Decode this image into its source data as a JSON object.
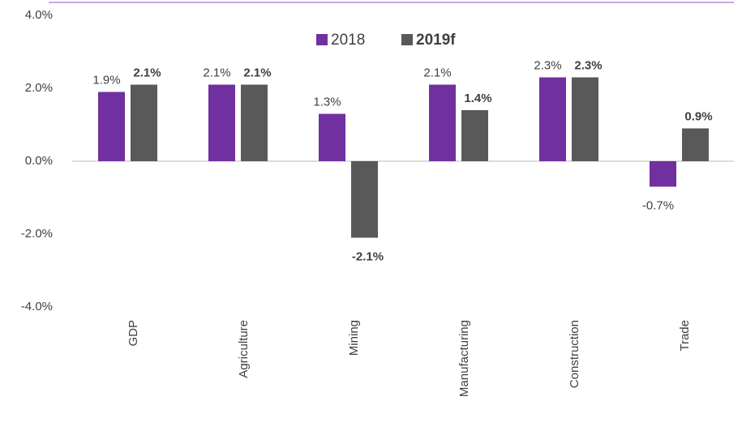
{
  "chart_data": {
    "type": "bar",
    "categories": [
      "GDP",
      "Agriculture",
      "Mining",
      "Manufacturing",
      "Construction",
      "Trade"
    ],
    "series": [
      {
        "name": "2018",
        "color": "#7030a0",
        "values": [
          1.9,
          2.1,
          1.3,
          2.1,
          2.3,
          -0.7
        ],
        "value_labels": [
          "1.9%",
          "2.1%",
          "1.3%",
          "2.1%",
          "2.3%",
          "-0.7%"
        ]
      },
      {
        "name": "2019f",
        "color": "#595959",
        "values": [
          2.1,
          2.1,
          -2.1,
          1.4,
          2.3,
          0.9
        ],
        "value_labels": [
          "2.1%",
          "2.1%",
          "-2.1%",
          "1.4%",
          "2.3%",
          "0.9%"
        ]
      }
    ],
    "ylim": [
      -4,
      4
    ],
    "yticks": [
      {
        "value": -4,
        "label": "-4.0%"
      },
      {
        "value": -2,
        "label": "-2.0%"
      },
      {
        "value": 0,
        "label": "0.0%"
      },
      {
        "value": 2,
        "label": "2.0%"
      },
      {
        "value": 4,
        "label": "4.0%"
      }
    ],
    "legend": "top"
  }
}
